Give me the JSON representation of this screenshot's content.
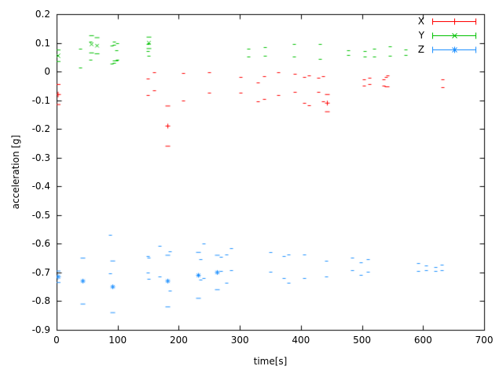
{
  "chart_data": {
    "type": "scatter",
    "style": "points-with-errorbars",
    "xlabel": "time[s]",
    "ylabel": "acceleration [g]",
    "xlim": [
      0,
      700
    ],
    "ylim": [
      -0.9,
      0.2
    ],
    "x_ticks": [
      "0",
      "100",
      "200",
      "300",
      "400",
      "500",
      "600",
      "700"
    ],
    "y_ticks": [
      "0.2",
      "0.1",
      "0",
      "-0.1",
      "-0.2",
      "-0.3",
      "-0.4",
      "-0.5",
      "-0.6",
      "-0.7",
      "-0.8",
      "-0.9"
    ],
    "grid": false,
    "legend_position": "top-right",
    "background": "#ffffff",
    "axis_color": "#000000",
    "series": [
      {
        "name": "X",
        "color": "#ff0000",
        "marker": "plus",
        "t_start": 36,
        "t_end": 632,
        "dt": 0.5,
        "isolated_points": [
          {
            "t": 2.5,
            "v": -0.08,
            "e": 0.035
          }
        ],
        "envelope": [
          {
            "t": 36,
            "mean": -0.06,
            "amp": 0.045
          },
          {
            "t": 48,
            "mean": -0.05,
            "amp": 0.04
          },
          {
            "t": 62,
            "mean": -0.055,
            "amp": 0.04
          },
          {
            "t": 80,
            "mean": -0.06,
            "amp": 0.035
          },
          {
            "t": 100,
            "mean": -0.04,
            "amp": 0.02
          },
          {
            "t": 130,
            "mean": -0.045,
            "amp": 0.025
          },
          {
            "t": 160,
            "mean": -0.05,
            "amp": 0.03
          },
          {
            "t": 180,
            "mean": -0.06,
            "amp": 0.045
          },
          {
            "t": 200,
            "mean": -0.06,
            "amp": 0.035
          },
          {
            "t": 225,
            "mean": -0.065,
            "amp": 0.03
          },
          {
            "t": 250,
            "mean": -0.05,
            "amp": 0.03
          },
          {
            "t": 275,
            "mean": -0.045,
            "amp": 0.025
          },
          {
            "t": 300,
            "mean": -0.06,
            "amp": 0.035
          },
          {
            "t": 315,
            "mean": -0.055,
            "amp": 0.04
          },
          {
            "t": 335,
            "mean": -0.06,
            "amp": 0.03
          },
          {
            "t": 355,
            "mean": -0.05,
            "amp": 0.03
          },
          {
            "t": 375,
            "mean": -0.04,
            "amp": 0.025
          },
          {
            "t": 395,
            "mean": -0.05,
            "amp": 0.03
          },
          {
            "t": 410,
            "mean": -0.07,
            "amp": 0.04
          },
          {
            "t": 425,
            "mean": -0.055,
            "amp": 0.03
          },
          {
            "t": 442,
            "mean": -0.075,
            "amp": 0.045
          },
          {
            "t": 455,
            "mean": -0.06,
            "amp": 0.035
          },
          {
            "t": 465,
            "mean": -0.04,
            "amp": 0.015
          },
          {
            "t": 520,
            "mean": -0.038,
            "amp": 0.013
          },
          {
            "t": 632,
            "mean": -0.037,
            "amp": 0.012
          }
        ],
        "outliers": [
          {
            "t": 182,
            "v": -0.19,
            "e": 0.07
          },
          {
            "t": 443,
            "v": -0.11,
            "e": 0.03
          }
        ]
      },
      {
        "name": "Y",
        "color": "#00c000",
        "marker": "cross",
        "t_start": 36,
        "t_end": 632,
        "dt": 0.5,
        "isolated_points": [
          {
            "t": 2.5,
            "v": 0.055,
            "e": 0.02
          }
        ],
        "envelope": [
          {
            "t": 36,
            "mean": 0.055,
            "amp": 0.05
          },
          {
            "t": 55,
            "mean": 0.05,
            "amp": 0.045
          },
          {
            "t": 75,
            "mean": 0.06,
            "amp": 0.04
          },
          {
            "t": 95,
            "mean": 0.07,
            "amp": 0.025
          },
          {
            "t": 120,
            "mean": 0.08,
            "amp": 0.02
          },
          {
            "t": 145,
            "mean": 0.085,
            "amp": 0.02
          },
          {
            "t": 170,
            "mean": 0.07,
            "amp": 0.015
          },
          {
            "t": 195,
            "mean": 0.082,
            "amp": 0.02
          },
          {
            "t": 215,
            "mean": 0.078,
            "amp": 0.018
          },
          {
            "t": 245,
            "mean": 0.072,
            "amp": 0.015
          },
          {
            "t": 290,
            "mean": 0.07,
            "amp": 0.013
          },
          {
            "t": 340,
            "mean": 0.068,
            "amp": 0.013
          },
          {
            "t": 385,
            "mean": 0.073,
            "amp": 0.015
          },
          {
            "t": 420,
            "mean": 0.065,
            "amp": 0.018
          },
          {
            "t": 448,
            "mean": 0.055,
            "amp": 0.025
          },
          {
            "t": 458,
            "mean": 0.01,
            "amp": 0.028
          },
          {
            "t": 464,
            "mean": 0.0,
            "amp": 0.02
          },
          {
            "t": 470,
            "mean": 0.04,
            "amp": 0.02
          },
          {
            "t": 478,
            "mean": 0.068,
            "amp": 0.012
          },
          {
            "t": 560,
            "mean": 0.07,
            "amp": 0.011
          },
          {
            "t": 632,
            "mean": 0.07,
            "amp": 0.011
          }
        ],
        "outliers": [
          {
            "t": 57,
            "v": 0.095,
            "e": 0.03
          },
          {
            "t": 66,
            "v": 0.09,
            "e": 0.028
          },
          {
            "t": 150,
            "v": 0.1,
            "e": 0.02
          }
        ]
      },
      {
        "name": "Z",
        "color": "#1e90ff",
        "marker": "asterisk",
        "t_start": 36,
        "t_end": 632,
        "dt": 0.5,
        "isolated_points": [
          {
            "t": 2.5,
            "v": -0.715,
            "e": 0.02
          }
        ],
        "envelope": [
          {
            "t": 36,
            "mean": -0.68,
            "amp": 0.07
          },
          {
            "t": 55,
            "mean": -0.685,
            "amp": 0.065
          },
          {
            "t": 75,
            "mean": -0.68,
            "amp": 0.055
          },
          {
            "t": 92,
            "mean": -0.69,
            "amp": 0.075
          },
          {
            "t": 105,
            "mean": -0.675,
            "amp": 0.04
          },
          {
            "t": 130,
            "mean": -0.675,
            "amp": 0.032
          },
          {
            "t": 155,
            "mean": -0.67,
            "amp": 0.04
          },
          {
            "t": 180,
            "mean": -0.68,
            "amp": 0.055
          },
          {
            "t": 205,
            "mean": -0.675,
            "amp": 0.045
          },
          {
            "t": 230,
            "mean": -0.67,
            "amp": 0.05
          },
          {
            "t": 255,
            "mean": -0.675,
            "amp": 0.04
          },
          {
            "t": 280,
            "mean": -0.68,
            "amp": 0.032
          },
          {
            "t": 310,
            "mean": -0.675,
            "amp": 0.04
          },
          {
            "t": 340,
            "mean": -0.68,
            "amp": 0.032
          },
          {
            "t": 370,
            "mean": -0.675,
            "amp": 0.035
          },
          {
            "t": 400,
            "mean": -0.68,
            "amp": 0.03
          },
          {
            "t": 430,
            "mean": -0.675,
            "amp": 0.035
          },
          {
            "t": 455,
            "mean": -0.68,
            "amp": 0.025
          },
          {
            "t": 490,
            "mean": -0.68,
            "amp": 0.018
          },
          {
            "t": 540,
            "mean": -0.68,
            "amp": 0.013
          },
          {
            "t": 632,
            "mean": -0.682,
            "amp": 0.009
          }
        ],
        "outliers": [
          {
            "t": 42,
            "v": -0.73,
            "e": 0.08
          },
          {
            "t": 91,
            "v": -0.75,
            "e": 0.09
          },
          {
            "t": 182,
            "v": -0.73,
            "e": 0.09
          },
          {
            "t": 232,
            "v": -0.71,
            "e": 0.08
          },
          {
            "t": 263,
            "v": -0.7,
            "e": 0.06
          }
        ]
      }
    ]
  }
}
